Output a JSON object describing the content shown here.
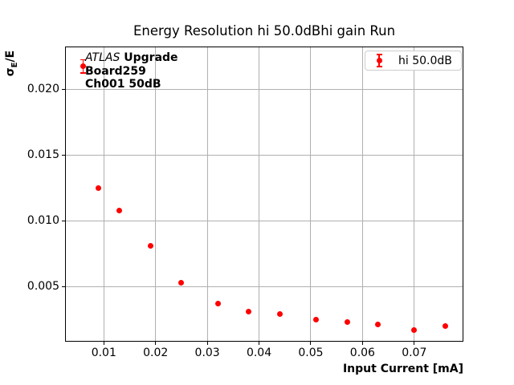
{
  "figure": {
    "title": "Energy Resolution hi 50.0dBhi gain Run",
    "xlabel": "Input Current [mA]",
    "ylabel": {
      "sigma": "σ",
      "sub": "E",
      "rest": "/E"
    },
    "annotation": {
      "line1_italic": "ATLAS",
      "line1_bold": " Upgrade",
      "line2": "Board259",
      "line3": "Ch001 50dB"
    },
    "legend": {
      "label": "hi 50.0dB"
    }
  },
  "chart_data": {
    "type": "scatter",
    "title": "Energy Resolution hi 50.0dBhi gain Run",
    "xlabel": "Input Current [mA]",
    "ylabel": "σ_E/E",
    "grid": true,
    "legend_position": "upper right",
    "xlim": [
      0.0025,
      0.0795
    ],
    "ylim": [
      0.0008,
      0.0233
    ],
    "xticks": {
      "values": [
        0.01,
        0.02,
        0.03,
        0.04,
        0.05,
        0.06,
        0.07
      ],
      "labels": [
        "0.01",
        "0.02",
        "0.03",
        "0.04",
        "0.05",
        "0.06",
        "0.07"
      ]
    },
    "yticks": {
      "values": [
        0.005,
        0.01,
        0.015,
        0.02
      ],
      "labels": [
        "0.005",
        "0.010",
        "0.015",
        "0.020"
      ]
    },
    "annotation_lines": [
      "ATLAS Upgrade",
      "Board259",
      "Ch001 50dB"
    ],
    "series": [
      {
        "name": "hi 50.0dB",
        "marker": "o",
        "color": "#ff0000",
        "x": [
          0.006,
          0.009,
          0.013,
          0.019,
          0.025,
          0.032,
          0.038,
          0.044,
          0.051,
          0.057,
          0.063,
          0.07,
          0.076
        ],
        "y": [
          0.0218,
          0.0125,
          0.0108,
          0.0081,
          0.0053,
          0.0037,
          0.0031,
          0.0029,
          0.0025,
          0.0023,
          0.0021,
          0.0017,
          0.002
        ],
        "yerr": [
          0.0005,
          0,
          0,
          0,
          0,
          0,
          0,
          0,
          0,
          0,
          0,
          0,
          0
        ]
      }
    ],
    "colors": {
      "marker": "#ff0000",
      "grid": "#b0b0b0",
      "spine": "#000000",
      "legend_border": "#cccccc"
    }
  }
}
